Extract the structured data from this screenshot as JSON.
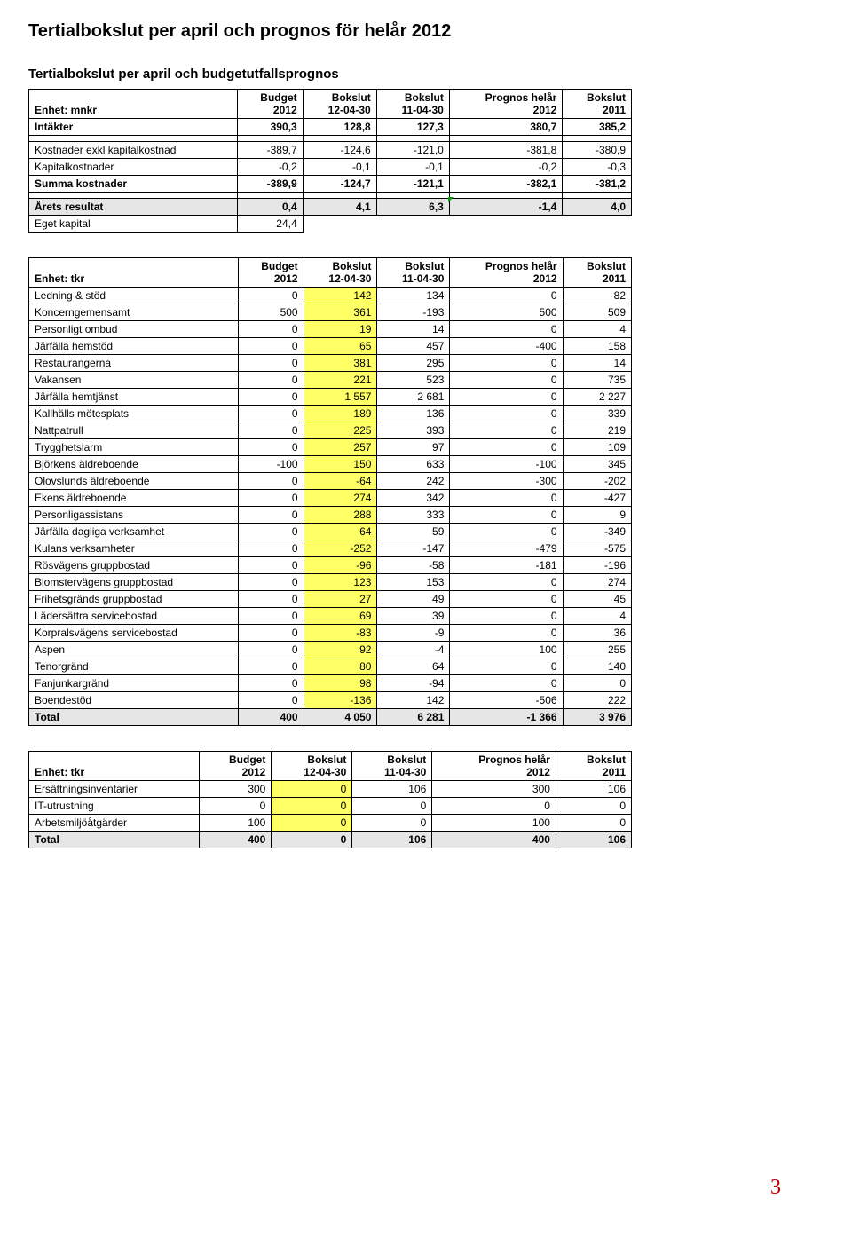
{
  "title": "Tertialbokslut per april och prognos för helår 2012",
  "subtitle": "Tertialbokslut per april och budgetutfallsprognos",
  "page_number": "3",
  "colors": {
    "highlight": "#ffff66",
    "grey": "#e6e6e6",
    "title": "#000000",
    "page_num": "#c00000",
    "marker": "#00a000"
  },
  "t1": {
    "headers": [
      "Enhet: mnkr",
      "Budget 2012",
      "Bokslut 12-04-30",
      "Bokslut 11-04-30",
      "Prognos helår 2012",
      "Bokslut 2011"
    ],
    "rows": [
      {
        "label": "Intäkter",
        "v": [
          "390,3",
          "128,8",
          "127,3",
          "380,7",
          "385,2"
        ],
        "bold": true
      },
      {
        "spacer": true
      },
      {
        "label": "Kostnader exkl kapitalkostnad",
        "v": [
          "-389,7",
          "-124,6",
          "-121,0",
          "-381,8",
          "-380,9"
        ]
      },
      {
        "label": "Kapitalkostnader",
        "v": [
          "-0,2",
          "-0,1",
          "-0,1",
          "-0,2",
          "-0,3"
        ]
      },
      {
        "label": "Summa kostnader",
        "v": [
          "-389,9",
          "-124,7",
          "-121,1",
          "-382,1",
          "-381,2"
        ],
        "bold": true
      },
      {
        "spacer": true
      },
      {
        "label": "Årets resultat",
        "v": [
          "0,4",
          "4,1",
          "6,3",
          "-1,4",
          "4,0"
        ],
        "grey": true,
        "bold": true,
        "mark": 4
      },
      {
        "label": "Eget kapital",
        "v": [
          "24,4",
          "",
          "",
          "",
          ""
        ],
        "short": true
      }
    ]
  },
  "t2": {
    "headers": [
      "Enhet: tkr",
      "Budget 2012",
      "Bokslut 12-04-30",
      "Bokslut 11-04-30",
      "Prognos helår 2012",
      "Bokslut 2011"
    ],
    "rows": [
      {
        "label": "Ledning & stöd",
        "v": [
          "0",
          "142",
          "134",
          "0",
          "82"
        ]
      },
      {
        "label": "Koncerngemensamt",
        "v": [
          "500",
          "361",
          "-193",
          "500",
          "509"
        ]
      },
      {
        "label": "Personligt ombud",
        "v": [
          "0",
          "19",
          "14",
          "0",
          "4"
        ]
      },
      {
        "label": "Järfälla hemstöd",
        "v": [
          "0",
          "65",
          "457",
          "-400",
          "158"
        ]
      },
      {
        "label": "Restaurangerna",
        "v": [
          "0",
          "381",
          "295",
          "0",
          "14"
        ]
      },
      {
        "label": "Vakansen",
        "v": [
          "0",
          "221",
          "523",
          "0",
          "735"
        ]
      },
      {
        "label": "Järfälla hemtjänst",
        "v": [
          "0",
          "1 557",
          "2 681",
          "0",
          "2 227"
        ]
      },
      {
        "label": "Kallhälls mötesplats",
        "v": [
          "0",
          "189",
          "136",
          "0",
          "339"
        ]
      },
      {
        "label": "Nattpatrull",
        "v": [
          "0",
          "225",
          "393",
          "0",
          "219"
        ]
      },
      {
        "label": "Trygghetslarm",
        "v": [
          "0",
          "257",
          "97",
          "0",
          "109"
        ]
      },
      {
        "label": "Björkens äldreboende",
        "v": [
          "-100",
          "150",
          "633",
          "-100",
          "345"
        ]
      },
      {
        "label": "Olovslunds äldreboende",
        "v": [
          "0",
          "-64",
          "242",
          "-300",
          "-202"
        ]
      },
      {
        "label": "Ekens äldreboende",
        "v": [
          "0",
          "274",
          "342",
          "0",
          "-427"
        ]
      },
      {
        "label": "Personligassistans",
        "v": [
          "0",
          "288",
          "333",
          "0",
          "9"
        ]
      },
      {
        "label": "Järfälla dagliga verksamhet",
        "v": [
          "0",
          "64",
          "59",
          "0",
          "-349"
        ]
      },
      {
        "label": "Kulans verksamheter",
        "v": [
          "0",
          "-252",
          "-147",
          "-479",
          "-575"
        ]
      },
      {
        "label": "Rösvägens gruppbostad",
        "v": [
          "0",
          "-96",
          "-58",
          "-181",
          "-196"
        ]
      },
      {
        "label": "Blomstervägens gruppbostad",
        "v": [
          "0",
          "123",
          "153",
          "0",
          "274"
        ]
      },
      {
        "label": "Frihetsgränds gruppbostad",
        "v": [
          "0",
          "27",
          "49",
          "0",
          "45"
        ]
      },
      {
        "label": "Lädersättra servicebostad",
        "v": [
          "0",
          "69",
          "39",
          "0",
          "4"
        ]
      },
      {
        "label": "Korpralsvägens servicebostad",
        "v": [
          "0",
          "-83",
          "-9",
          "0",
          "36"
        ]
      },
      {
        "label": "Aspen",
        "v": [
          "0",
          "92",
          "-4",
          "100",
          "255"
        ]
      },
      {
        "label": "Tenorgränd",
        "v": [
          "0",
          "80",
          "64",
          "0",
          "140"
        ]
      },
      {
        "label": "Fanjunkargränd",
        "v": [
          "0",
          "98",
          "-94",
          "0",
          "0"
        ]
      },
      {
        "label": "Boendestöd",
        "v": [
          "0",
          "-136",
          "142",
          "-506",
          "222"
        ]
      }
    ],
    "total": {
      "label": "Total",
      "v": [
        "400",
        "4 050",
        "6 281",
        "-1 366",
        "3 976"
      ]
    }
  },
  "t3": {
    "headers": [
      "Enhet: tkr",
      "Budget 2012",
      "Bokslut 12-04-30",
      "Bokslut 11-04-30",
      "Prognos helår 2012",
      "Bokslut 2011"
    ],
    "rows": [
      {
        "label": "Ersättningsinventarier",
        "v": [
          "300",
          "0",
          "106",
          "300",
          "106"
        ]
      },
      {
        "label": "IT-utrustning",
        "v": [
          "0",
          "0",
          "0",
          "0",
          "0"
        ]
      },
      {
        "label": "Arbetsmiljöåtgärder",
        "v": [
          "100",
          "0",
          "0",
          "100",
          "0"
        ]
      }
    ],
    "total": {
      "label": "Total",
      "v": [
        "400",
        "0",
        "106",
        "400",
        "106"
      ]
    }
  }
}
